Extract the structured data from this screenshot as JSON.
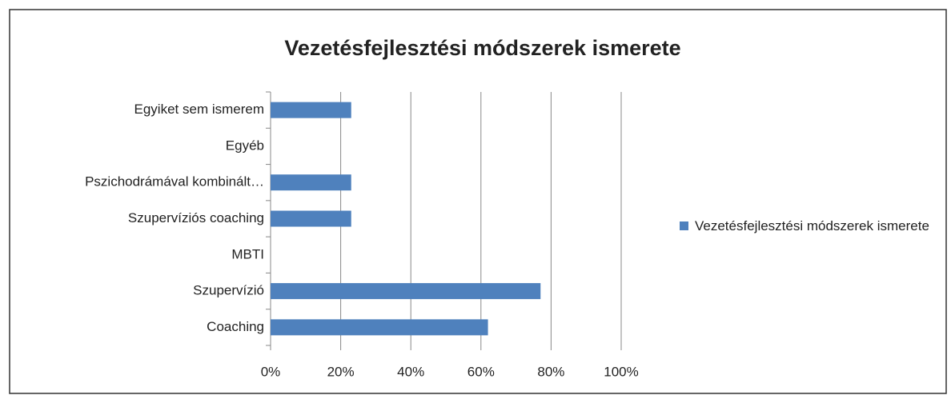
{
  "chart_data": {
    "type": "bar",
    "orientation": "horizontal",
    "title": "Vezetésfejlesztési módszerek ismerete",
    "categories": [
      "Egyiket sem ismerem",
      "Egyéb",
      "Pszichodrámával kombinált…",
      "Szupervíziós coaching",
      "MBTI",
      "Szupervízió",
      "Coaching"
    ],
    "series": [
      {
        "name": "Vezetésfejlesztési módszerek ismerete",
        "color": "#4f81bd",
        "values": [
          23,
          0,
          23,
          23,
          0,
          77,
          62
        ]
      }
    ],
    "xlim": [
      0,
      100
    ],
    "xticks": [
      {
        "value": 0,
        "label": "0%"
      },
      {
        "value": 20,
        "label": "20%"
      },
      {
        "value": 40,
        "label": "40%"
      },
      {
        "value": 60,
        "label": "60%"
      },
      {
        "value": 80,
        "label": "80%"
      },
      {
        "value": 100,
        "label": "100%"
      }
    ],
    "grid": true,
    "legend": "right"
  }
}
